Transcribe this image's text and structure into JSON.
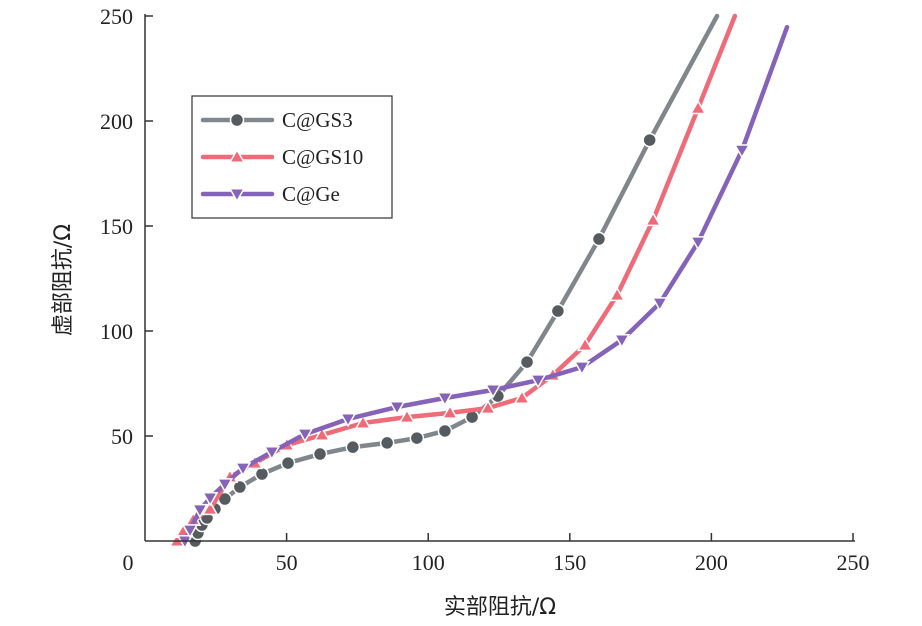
{
  "chart_data": {
    "type": "line",
    "title": "",
    "xlabel": "实部阻抗/Ω",
    "ylabel": "虚部阻抗/Ω",
    "xlim": [
      0,
      250
    ],
    "ylim": [
      0,
      250
    ],
    "origin_label": "0",
    "xticks": [
      "50",
      "100",
      "150",
      "200",
      "250"
    ],
    "xtick_values": [
      50,
      100,
      150,
      200,
      250
    ],
    "yticks": [
      "50",
      "100",
      "150",
      "200",
      "250"
    ],
    "ytick_values": [
      50,
      100,
      150,
      200,
      250
    ],
    "grid": false,
    "legend_position": "upper-left",
    "series": [
      {
        "name": "C@GS3",
        "marker": "circle",
        "line_color": "#80878c",
        "marker_color": "#555b5f",
        "x": [
          17.7,
          18.7,
          20.1,
          21.9,
          24.7,
          28.2,
          33.5,
          41.3,
          50.5,
          61.8,
          73.4,
          85.5,
          96.0,
          105.9,
          115.5,
          124.6,
          134.9,
          145.8,
          160.3,
          178.2
        ],
        "y": [
          0,
          3.8,
          7.6,
          11.0,
          15.2,
          20.0,
          25.7,
          31.9,
          37.1,
          41.4,
          44.7,
          46.7,
          49.0,
          52.4,
          59.0,
          69.0,
          85.2,
          109.5,
          143.8,
          190.9
        ],
        "tail": [
          202,
          250
        ]
      },
      {
        "name": "C@GS10",
        "marker": "triangle-up",
        "line_color": "#ef6b78",
        "marker_color": "#ef6b78",
        "x": [
          11.3,
          13.4,
          17.0,
          23.0,
          30.0,
          38.8,
          50.1,
          62.5,
          77.0,
          92.5,
          107.7,
          121.1,
          133.1,
          144.0,
          155.4,
          166.7,
          179.4,
          195.3
        ],
        "y": [
          0,
          4.3,
          10.0,
          15.2,
          30.5,
          37.1,
          45.7,
          50.5,
          56.2,
          59.0,
          61.0,
          63.3,
          68.1,
          79.0,
          93.3,
          117.1,
          152.8,
          206.1
        ],
        "tail": [
          208.3,
          250
        ]
      },
      {
        "name": "C@Ge",
        "marker": "triangle-down",
        "line_color": "#8463b8",
        "marker_color": "#8463b8",
        "x": [
          14.1,
          15.9,
          19.4,
          23.0,
          28.2,
          34.6,
          44.8,
          56.5,
          71.7,
          89.0,
          105.9,
          122.9,
          138.8,
          154.3,
          168.4,
          181.8,
          195.3,
          210.8
        ],
        "y": [
          0,
          5.2,
          14.8,
          20.5,
          27.1,
          34.7,
          42.4,
          50.9,
          58.1,
          63.8,
          68.1,
          71.9,
          76.6,
          82.8,
          95.7,
          113.3,
          142.3,
          186.1
        ],
        "tail": [
          226.7,
          244.7
        ]
      }
    ]
  }
}
